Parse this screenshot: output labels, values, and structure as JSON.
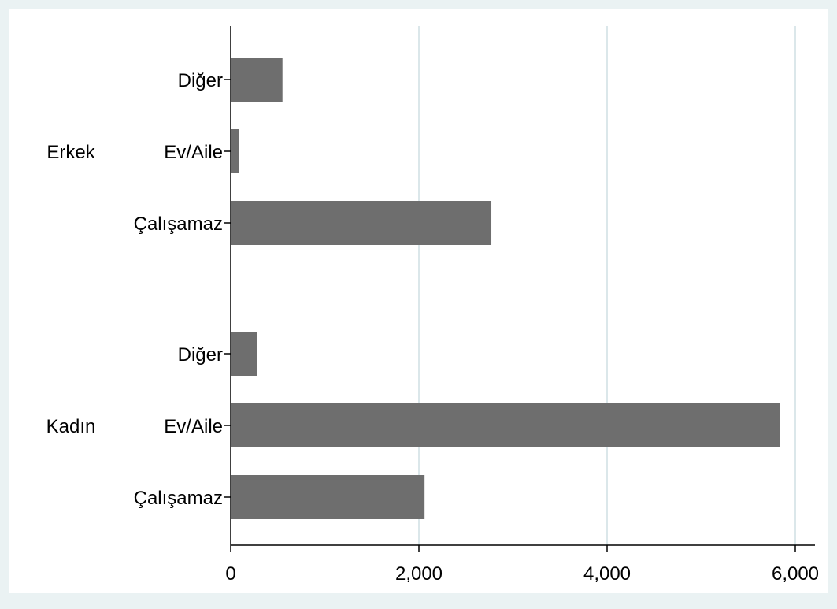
{
  "chart_data": {
    "type": "bar",
    "orientation": "horizontal",
    "groups": [
      {
        "name": "Erkek",
        "categories": [
          "Diğer",
          "Ev/Aile",
          "Çalışamaz"
        ],
        "values": [
          550,
          90,
          2770
        ]
      },
      {
        "name": "Kadın",
        "categories": [
          "Diğer",
          "Ev/Aile",
          "Çalışamaz"
        ],
        "values": [
          280,
          5840,
          2060
        ]
      }
    ],
    "xlim": [
      0,
      6000
    ],
    "xticks": [
      0,
      2000,
      4000,
      6000
    ],
    "xtick_labels": [
      "0",
      "2,000",
      "4,000",
      "6,000"
    ],
    "xlabel": "",
    "ylabel": "",
    "title": "",
    "grid": true
  },
  "colors": {
    "background": "#eaf2f3",
    "plot_area": "#ffffff",
    "bar": "#6e6e6e",
    "grid": "#dbe7ea"
  }
}
